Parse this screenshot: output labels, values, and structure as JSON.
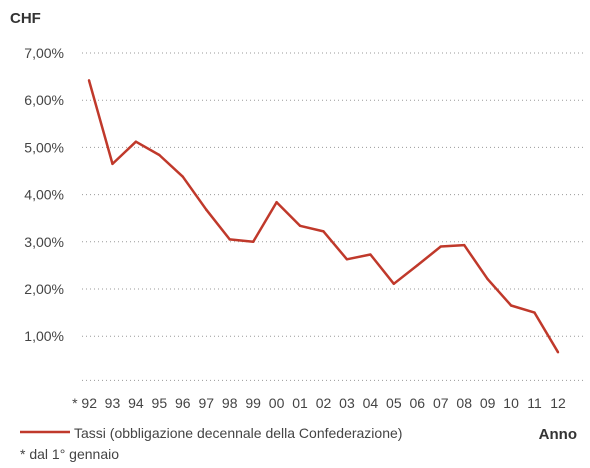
{
  "chart_data": {
    "type": "line",
    "currency_label": "CHF",
    "ylabel": "",
    "xlabel": "Anno",
    "ylim": [
      0,
      7
    ],
    "y_ticks": [
      {
        "value": 7,
        "label": "7,00%"
      },
      {
        "value": 6,
        "label": "6,00%"
      },
      {
        "value": 5,
        "label": "5,00%"
      },
      {
        "value": 4,
        "label": "4,00%"
      },
      {
        "value": 3,
        "label": "3,00%"
      },
      {
        "value": 2,
        "label": "2,00%"
      },
      {
        "value": 1,
        "label": "1,00%"
      }
    ],
    "categories": [
      "* 92",
      "93",
      "94",
      "95",
      "96",
      "97",
      "98",
      "99",
      "00",
      "01",
      "02",
      "03",
      "04",
      "05",
      "06",
      "07",
      "08",
      "09",
      "10",
      "11",
      "12"
    ],
    "series": [
      {
        "name": "Tassi (obbligazione decennale della Confederazione)",
        "color": "#c0392b",
        "values": [
          6.42,
          4.65,
          5.12,
          4.84,
          4.38,
          3.68,
          3.05,
          3.0,
          3.84,
          3.34,
          3.22,
          2.63,
          2.73,
          2.11,
          2.5,
          2.9,
          2.93,
          2.21,
          1.65,
          1.5,
          0.66
        ]
      }
    ],
    "grid": true,
    "grid_style": "dotted",
    "legend_position": "bottom-left",
    "footnote": "* dal 1° gennaio"
  }
}
